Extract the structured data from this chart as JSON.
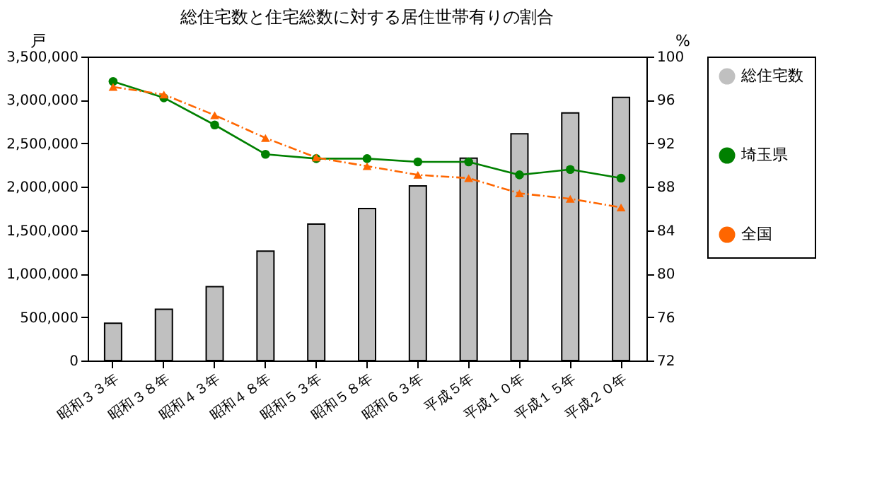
{
  "chart_data": {
    "type": "bar",
    "title": "総住宅数と住宅総数に対する居住世帯有りの割合",
    "ylabel": "戸",
    "y2label": "%",
    "categories": [
      "昭和３３年",
      "昭和３８年",
      "昭和４３年",
      "昭和４８年",
      "昭和５３年",
      "昭和５８年",
      "昭和６３年",
      "平成５年",
      "平成１０年",
      "平成１５年",
      "平成２０年"
    ],
    "series": [
      {
        "name": "総住宅数",
        "color": "#c0c0c0",
        "values": [
          430000,
          590000,
          850000,
          1260000,
          1570000,
          1750000,
          2010000,
          2330000,
          2610000,
          2850000,
          3030000
        ]
      },
      {
        "name": "埼玉県",
        "type": "line",
        "axis": "y2",
        "color": "#008000",
        "marker": "circle",
        "line_style": "solid",
        "values": [
          97.7,
          96.2,
          93.7,
          91.0,
          90.6,
          90.6,
          90.3,
          90.3,
          89.1,
          89.6,
          88.8
        ]
      },
      {
        "name": "全国",
        "type": "line",
        "axis": "y2",
        "color": "#ff6600",
        "marker": "triangle",
        "line_style": "dashed",
        "values": [
          97.2,
          96.5,
          94.6,
          92.5,
          90.7,
          89.9,
          89.1,
          88.8,
          87.4,
          86.9,
          86.1
        ]
      }
    ],
    "ylim": [
      0,
      3500000
    ],
    "yticks": [
      {
        "value": 0,
        "label": "0"
      },
      {
        "value": 500000,
        "label": "500,000"
      },
      {
        "value": 1000000,
        "label": "1,000,000"
      },
      {
        "value": 1500000,
        "label": "1,500,000"
      },
      {
        "value": 2000000,
        "label": "2,000,000"
      },
      {
        "value": 2500000,
        "label": "2,500,000"
      },
      {
        "value": 3000000,
        "label": "3,000,000"
      },
      {
        "value": 3500000,
        "label": "3,500,000"
      }
    ],
    "y2lim": [
      72,
      100
    ],
    "y2ticks": [
      72,
      76,
      80,
      84,
      88,
      92,
      96,
      100
    ],
    "grid": false,
    "legend": "right"
  }
}
